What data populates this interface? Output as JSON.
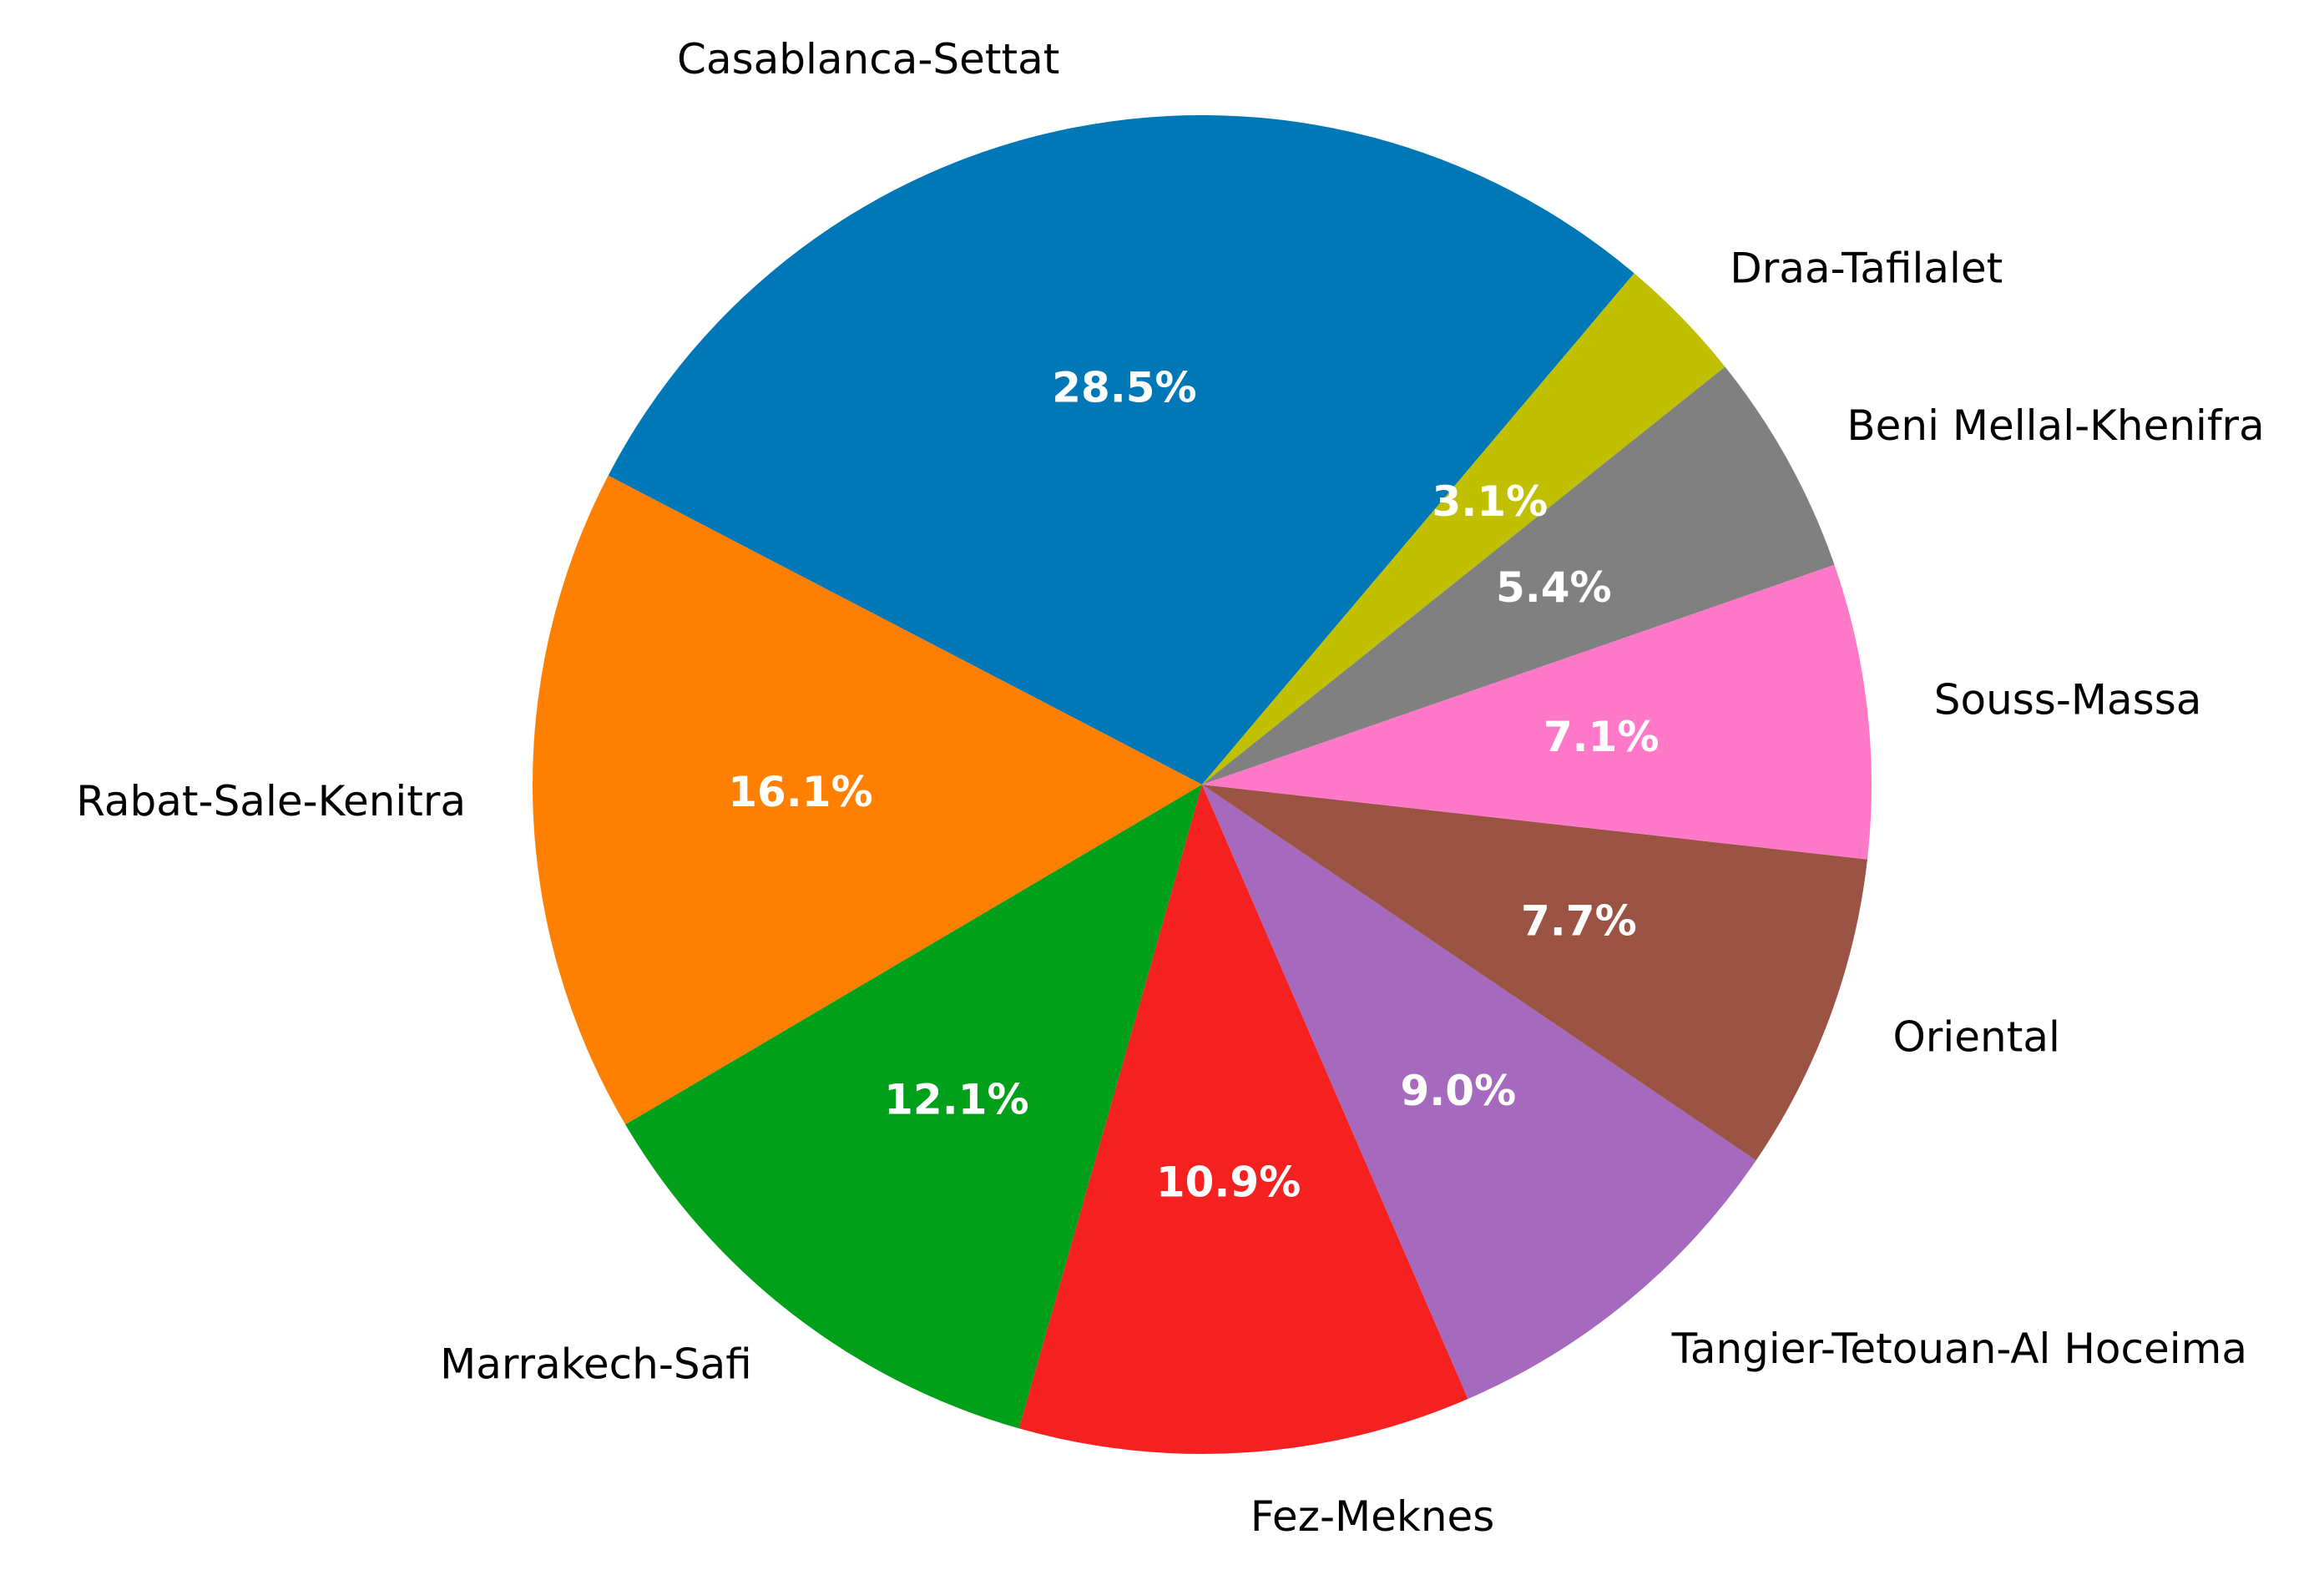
{
  "chart_data": {
    "type": "pie",
    "categories": [
      "Casablanca-Settat",
      "Rabat-Sale-Kenitra",
      "Marrakech-Safi",
      "Fez-Meknes",
      "Tangier-Tetouan-Al Hoceima",
      "Oriental",
      "Souss-Massa",
      "Beni Mellal-Khenifra",
      "Draa-Tafilalet"
    ],
    "values": [
      28.5,
      16.1,
      12.1,
      10.9,
      9.0,
      7.7,
      7.1,
      5.4,
      3.1
    ],
    "value_labels": [
      "28.5%",
      "16.1%",
      "12.1%",
      "10.9%",
      "9.0%",
      "7.7%",
      "7.1%",
      "5.4%",
      "3.1%"
    ],
    "colors": [
      "#0077b6",
      "#ff7f00",
      "#00a01a",
      "#f52020",
      "#a569bd",
      "#9b5444",
      "#ff79c8",
      "#808080",
      "#c0c000"
    ]
  }
}
